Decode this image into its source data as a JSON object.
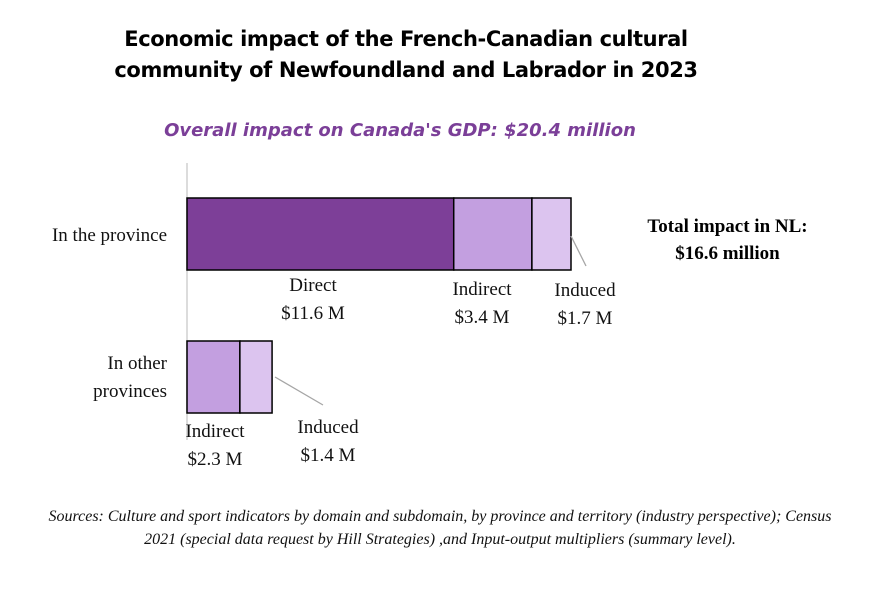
{
  "chart_data": {
    "type": "bar",
    "orientation": "horizontal",
    "stacked": true,
    "title_lines": [
      "Economic impact of the French-Canadian cultural",
      "community of Newfoundland and Labrador in 2023"
    ],
    "subtitle": "Overall impact on Canada's GDP: $20.4 million",
    "categories": [
      {
        "lines": [
          "In the province"
        ]
      },
      {
        "lines": [
          "In other",
          "provinces"
        ]
      }
    ],
    "segments": [
      {
        "category": 0,
        "name": "Direct",
        "value": 11.6,
        "label": "$11.6 M",
        "color": "#7d3f98"
      },
      {
        "category": 0,
        "name": "Indirect",
        "value": 3.4,
        "label": "$3.4 M",
        "color": "#c39fe0"
      },
      {
        "category": 0,
        "name": "Induced",
        "value": 1.7,
        "label": "$1.7 M",
        "color": "#dcc4ef"
      },
      {
        "category": 1,
        "name": "Indirect",
        "value": 2.3,
        "label": "$2.3 M",
        "color": "#c39fe0"
      },
      {
        "category": 1,
        "name": "Induced",
        "value": 1.4,
        "label": "$1.4 M",
        "color": "#dcc4ef"
      }
    ],
    "total_annotation": [
      "Total impact in NL:",
      "$16.6 million"
    ],
    "xlim": [
      0,
      16.7
    ],
    "grid": false,
    "legend": "none"
  },
  "source": "Sources: Culture and sport indicators by domain and subdomain, by province and territory (industry perspective); Census 2021 (special data request by Hill Strategies) ,and Input-output multipliers (summary level).",
  "colors": {
    "accent": "#7b3f98",
    "axis": "#d0d0d0",
    "bar_outline": "#000000"
  }
}
